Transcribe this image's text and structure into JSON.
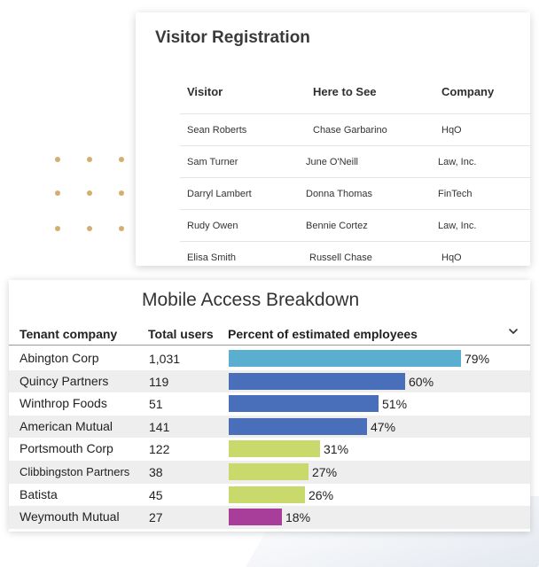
{
  "visitor_registration": {
    "title": "Visitor Registration",
    "columns": [
      "Visitor",
      "Here to See",
      "Company"
    ],
    "rows": [
      {
        "visitor": "Sean Roberts",
        "here_to_see": "Chase Garbarino",
        "company": "HqO"
      },
      {
        "visitor": "Sam Turner",
        "here_to_see": "June O'Neill",
        "company": "Law, Inc."
      },
      {
        "visitor": "Darryl Lambert",
        "here_to_see": "Donna Thomas",
        "company": "FinTech"
      },
      {
        "visitor": "Rudy Owen",
        "here_to_see": "Bennie Cortez",
        "company": "Law, Inc."
      },
      {
        "visitor": "Elisa Smith",
        "here_to_see": "Russell Chase",
        "company": "HqO"
      }
    ]
  },
  "mobile_access": {
    "title": "Mobile Access Breakdown",
    "columns": [
      "Tenant company",
      "Total users",
      "Percent of estimated employees"
    ],
    "chevron_icon": "chevron-down-icon",
    "bar_colors": {
      "teal": "#5aafd1",
      "blue": "#4a6fba",
      "green": "#c9d96b",
      "magenta": "#a83e99"
    },
    "rows": [
      {
        "company": "Abington Corp",
        "users": "1,031",
        "percent": 79,
        "percent_label": "79%",
        "color": "#5aafd1"
      },
      {
        "company": "Quincy Partners",
        "users": "119",
        "percent": 60,
        "percent_label": "60%",
        "color": "#4a6fba"
      },
      {
        "company": "Winthrop Foods",
        "users": "51",
        "percent": 51,
        "percent_label": "51%",
        "color": "#4a6fba"
      },
      {
        "company": "American Mutual",
        "users": "141",
        "percent": 47,
        "percent_label": "47%",
        "color": "#4a6fba"
      },
      {
        "company": "Portsmouth Corp",
        "users": "122",
        "percent": 31,
        "percent_label": "31%",
        "color": "#c9d96b"
      },
      {
        "company": "Clibbingston Partners",
        "users": "38",
        "percent": 27,
        "percent_label": "27%",
        "color": "#c9d96b"
      },
      {
        "company": "Batista",
        "users": "45",
        "percent": 26,
        "percent_label": "26%",
        "color": "#c9d96b"
      },
      {
        "company": "Weymouth Mutual",
        "users": "27",
        "percent": 18,
        "percent_label": "18%",
        "color": "#a83e99"
      }
    ]
  }
}
